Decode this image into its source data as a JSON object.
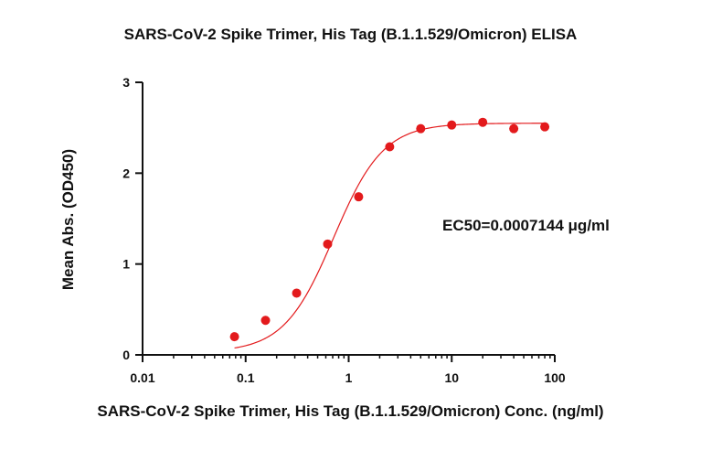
{
  "chart_data": {
    "type": "scatter",
    "title": "SARS-CoV-2 Spike Trimer, His Tag (B.1.1.529/Omicron) ELISA",
    "xlabel": "SARS-CoV-2 Spike Trimer, His Tag (B.1.1.529/Omicron) Conc. (ng/ml)",
    "ylabel": "Mean Abs. (OD450)",
    "x_scale": "log",
    "xlim": [
      0.01,
      100
    ],
    "ylim": [
      0,
      3
    ],
    "x_ticks": [
      0.01,
      0.1,
      1,
      10,
      100
    ],
    "x_tick_labels": [
      "0.01",
      "0.1",
      "1",
      "10",
      "100"
    ],
    "y_ticks": [
      0,
      1,
      2,
      3
    ],
    "y_tick_labels": [
      "0",
      "1",
      "2",
      "3"
    ],
    "grid": false,
    "annotation": "EC50=0.0007144 μg/ml",
    "point_color": "#e31a1c",
    "curve_color": "#e31a1c",
    "points": {
      "x": [
        0.078,
        0.156,
        0.3125,
        0.625,
        1.25,
        2.5,
        5,
        10,
        20,
        40,
        80
      ],
      "y": [
        0.2,
        0.38,
        0.68,
        1.22,
        1.74,
        2.29,
        2.49,
        2.53,
        2.56,
        2.49,
        2.51
      ]
    },
    "fit": {
      "bottom": 0.03,
      "top": 2.55,
      "ec50": 0.7144,
      "hill": 1.8
    }
  }
}
